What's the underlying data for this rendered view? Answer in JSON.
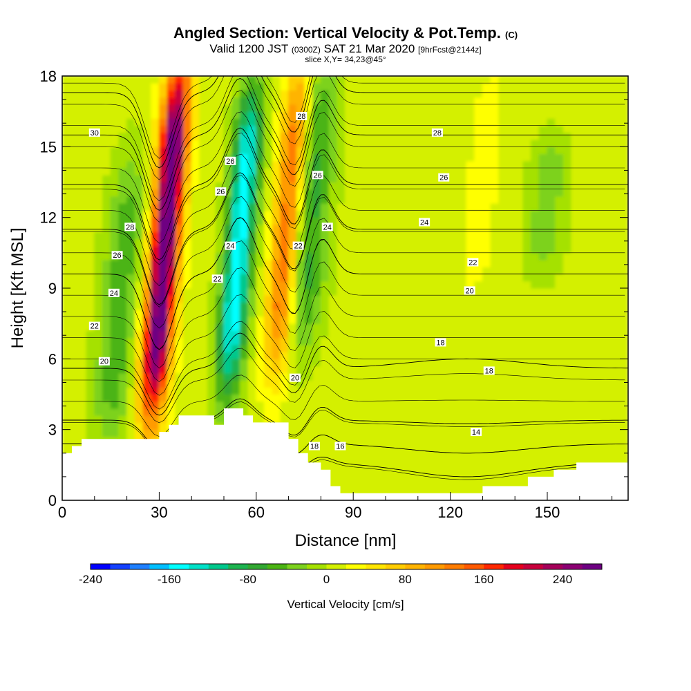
{
  "header": {
    "title_main": "Angled Section: Vertical Velocity & Pot.Temp.",
    "title_unit": "(C)",
    "valid_prefix": "Valid 1200 JST",
    "valid_zulu": "(0300Z)",
    "valid_date": "SAT 21 Mar 2020",
    "valid_fcst": "[9hrFcst@2144z]",
    "slice": "slice X,Y= 34,23@45°"
  },
  "chart_data": {
    "type": "heatmap",
    "xlabel": "Distance [nm]",
    "ylabel": "Height [Kft MSL]",
    "xlim": [
      0,
      175
    ],
    "ylim": [
      0,
      18
    ],
    "x_ticks": [
      0,
      30,
      60,
      90,
      120,
      150
    ],
    "y_ticks": [
      0,
      3,
      6,
      9,
      12,
      15,
      18
    ],
    "colorbar": {
      "title": "Vertical Velocity [cm/s]",
      "min": -240,
      "max": 280,
      "step": 20,
      "tick_values": [
        -240,
        -160,
        -80,
        0,
        80,
        160,
        240
      ],
      "colors": [
        "#0000ff",
        "#1441ff",
        "#1f80ff",
        "#00bfff",
        "#00ffff",
        "#00e1c8",
        "#00c88c",
        "#1eb450",
        "#32a832",
        "#4bb414",
        "#7dd21e",
        "#a5e100",
        "#d4f000",
        "#ffff00",
        "#ffe600",
        "#ffcd00",
        "#ffb400",
        "#ff9b00",
        "#ff7d00",
        "#ff5a00",
        "#ff2800",
        "#e6001e",
        "#c8003c",
        "#a5005a",
        "#8c0073",
        "#6e0082"
      ]
    },
    "velocity_features": [
      {
        "x": 32,
        "y_range": [
          4,
          18
        ],
        "peak": 280,
        "label": "strong updraft"
      },
      {
        "x": 55,
        "y_range": [
          5,
          17
        ],
        "peak": -160,
        "label": "downdraft"
      },
      {
        "x": 70,
        "y_range": [
          6,
          18
        ],
        "peak": 140,
        "label": "updraft"
      },
      {
        "x": 77,
        "y_range": [
          7,
          18
        ],
        "peak": -80,
        "label": "downdraft"
      },
      {
        "x": 18,
        "y_range": [
          3,
          14
        ],
        "peak": -60,
        "label": "downdraft"
      },
      {
        "x": 130,
        "y_range": [
          9,
          18
        ],
        "peak": 20,
        "label": "weak updraft"
      },
      {
        "x": 150,
        "y_range": [
          10,
          15
        ],
        "peak": -40,
        "label": "weak downdraft"
      }
    ],
    "isentropes": [
      {
        "label": "14",
        "level": 1.6
      },
      {
        "label": "16",
        "level": 2.4
      },
      {
        "label": "18",
        "level": 3.4
      },
      {
        "label": "20",
        "level": 5.6
      },
      {
        "label": "22",
        "level": 9.6
      },
      {
        "label": "24",
        "level": 11.5
      },
      {
        "label": "26",
        "level": 13.4
      },
      {
        "label": "28",
        "level": 15.5
      },
      {
        "label": "30",
        "level": 17.3
      }
    ],
    "contour_labels": [
      {
        "text": "30",
        "x": 10,
        "y": 15.6
      },
      {
        "text": "28",
        "x": 21,
        "y": 11.6
      },
      {
        "text": "26",
        "x": 17,
        "y": 10.4
      },
      {
        "text": "24",
        "x": 16,
        "y": 8.8
      },
      {
        "text": "22",
        "x": 10,
        "y": 7.4
      },
      {
        "text": "20",
        "x": 13,
        "y": 5.9
      },
      {
        "text": "26",
        "x": 52,
        "y": 14.4
      },
      {
        "text": "26",
        "x": 49,
        "y": 13.1
      },
      {
        "text": "24",
        "x": 52,
        "y": 10.8
      },
      {
        "text": "22",
        "x": 48,
        "y": 9.4
      },
      {
        "text": "28",
        "x": 74,
        "y": 16.3
      },
      {
        "text": "26",
        "x": 79,
        "y": 13.8
      },
      {
        "text": "24",
        "x": 82,
        "y": 11.6
      },
      {
        "text": "22",
        "x": 73,
        "y": 10.8
      },
      {
        "text": "20",
        "x": 72,
        "y": 5.2
      },
      {
        "text": "18",
        "x": 78,
        "y": 2.3
      },
      {
        "text": "16",
        "x": 86,
        "y": 2.3
      },
      {
        "text": "28",
        "x": 116,
        "y": 15.6
      },
      {
        "text": "26",
        "x": 118,
        "y": 13.7
      },
      {
        "text": "24",
        "x": 112,
        "y": 11.8
      },
      {
        "text": "22",
        "x": 127,
        "y": 10.1
      },
      {
        "text": "20",
        "x": 126,
        "y": 8.9
      },
      {
        "text": "18",
        "x": 117,
        "y": 6.7
      },
      {
        "text": "18",
        "x": 132,
        "y": 5.5
      },
      {
        "text": "14",
        "x": 128,
        "y": 2.9
      }
    ],
    "terrain": [
      [
        0,
        2
      ],
      [
        3,
        2
      ],
      [
        3,
        2.3
      ],
      [
        6,
        2.3
      ],
      [
        6,
        2.6
      ],
      [
        30,
        2.6
      ],
      [
        30,
        2.9
      ],
      [
        33,
        2.9
      ],
      [
        33,
        3.2
      ],
      [
        36,
        3.2
      ],
      [
        36,
        3.6
      ],
      [
        47,
        3.6
      ],
      [
        47,
        3.2
      ],
      [
        50,
        3.2
      ],
      [
        50,
        3.9
      ],
      [
        56,
        3.9
      ],
      [
        56,
        3.6
      ],
      [
        59,
        3.6
      ],
      [
        59,
        3.3
      ],
      [
        70,
        3.3
      ],
      [
        70,
        2.6
      ],
      [
        73,
        2.6
      ],
      [
        73,
        2
      ],
      [
        76,
        2
      ],
      [
        76,
        1.6
      ],
      [
        80,
        1.6
      ],
      [
        80,
        1.3
      ],
      [
        83,
        1.3
      ],
      [
        83,
        0.6
      ],
      [
        86,
        0.6
      ],
      [
        86,
        0.3
      ],
      [
        130,
        0.3
      ],
      [
        130,
        0.6
      ],
      [
        144,
        0.6
      ],
      [
        144,
        1
      ],
      [
        152,
        1
      ],
      [
        152,
        1.3
      ],
      [
        159,
        1.3
      ],
      [
        159,
        1.6
      ],
      [
        175,
        1.6
      ]
    ]
  }
}
